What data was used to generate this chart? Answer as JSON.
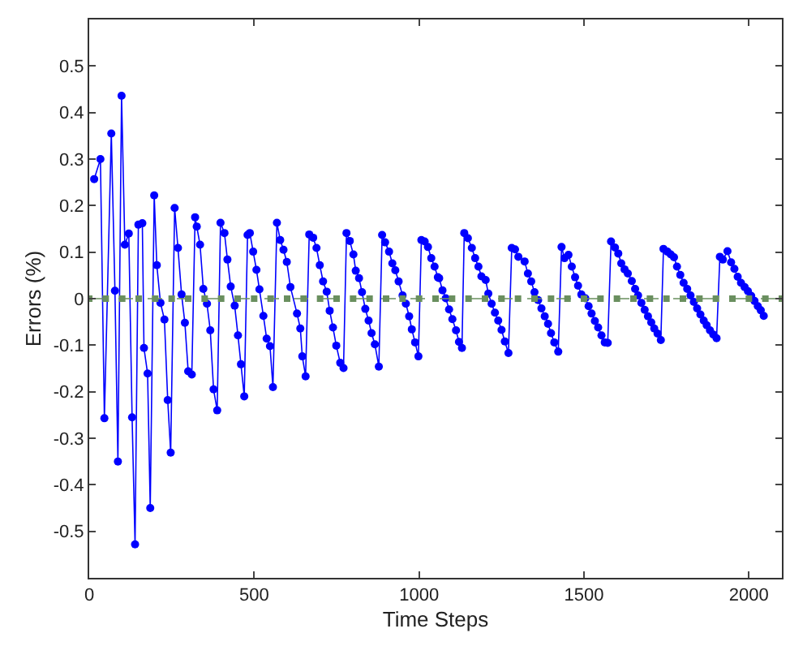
{
  "chart_data": {
    "type": "line",
    "xlabel": "Time Steps",
    "ylabel": "Errors (%)",
    "xlim": [
      0,
      2100
    ],
    "xticks": [
      0,
      500,
      1000,
      1500,
      2000
    ],
    "ylim": [
      -0.6,
      0.6
    ],
    "yticks": [
      -0.5,
      -0.4,
      -0.3,
      -0.2,
      -0.1,
      0,
      0.1,
      0.2,
      0.3,
      0.4,
      0.5
    ],
    "marker": "circle",
    "line_style": "solid",
    "series": [
      {
        "color": "#0000ff",
        "x": [
          15,
          34,
          46,
          67,
          78,
          87,
          98,
          108,
          120,
          130,
          139,
          149,
          161,
          166,
          177,
          185,
          197,
          205,
          216,
          228,
          238,
          247,
          259,
          269,
          280,
          290,
          300,
          311,
          321,
          326,
          336,
          346,
          357,
          367,
          377,
          388,
          398,
          410,
          419,
          429,
          441,
          451,
          460,
          470,
          480,
          487,
          497,
          507,
          516,
          528,
          538,
          548,
          557,
          569,
          579,
          589,
          599,
          610,
          630,
          640,
          646,
          656,
          667,
          679,
          689,
          699,
          709,
          720,
          729,
          739,
          749,
          761,
          771,
          780,
          790,
          801,
          808,
          818,
          827,
          837,
          847,
          856,
          866,
          878,
          888,
          897,
          909,
          919,
          928,
          938,
          950,
          960,
          970,
          978,
          988,
          998,
          1007,
          1017,
          1027,
          1037,
          1047,
          1057,
          1061,
          1071,
          1081,
          1091,
          1101,
          1112,
          1121,
          1130,
          1137,
          1148,
          1160,
          1170,
          1180,
          1189,
          1202,
          1210,
          1220,
          1230,
          1240,
          1250,
          1260,
          1271,
          1281,
          1291,
          1301,
          1320,
          1330,
          1340,
          1350,
          1361,
          1371,
          1381,
          1391,
          1400,
          1410,
          1422,
          1432,
          1441,
          1453,
          1463,
          1473,
          1482,
          1492,
          1504,
          1514,
          1523,
          1533,
          1543,
          1553,
          1563,
          1572,
          1582,
          1594,
          1604,
          1613,
          1623,
          1633,
          1645,
          1655,
          1664,
          1674,
          1684,
          1694,
          1704,
          1713,
          1723,
          1733,
          1741,
          1753,
          1763,
          1773,
          1782,
          1792,
          1802,
          1813,
          1823,
          1833,
          1843,
          1853,
          1863,
          1872,
          1882,
          1892,
          1902,
          1912,
          1921,
          1935,
          1946,
          1956,
          1966,
          1976,
          1987,
          1997,
          2007,
          2017,
          2027,
          2036,
          2045
        ],
        "values": [
          0.257,
          0.3,
          -0.257,
          0.355,
          0.017,
          -0.35,
          0.436,
          0.116,
          0.14,
          -0.255,
          -0.528,
          0.159,
          0.162,
          -0.106,
          -0.161,
          -0.45,
          0.222,
          0.072,
          -0.009,
          -0.045,
          -0.218,
          -0.331,
          0.195,
          0.109,
          0.009,
          -0.052,
          -0.156,
          -0.163,
          0.175,
          0.155,
          0.116,
          0.021,
          -0.011,
          -0.068,
          -0.195,
          -0.24,
          0.163,
          0.141,
          0.084,
          0.026,
          -0.015,
          -0.079,
          -0.141,
          -0.21,
          0.137,
          0.141,
          0.101,
          0.062,
          0.02,
          -0.037,
          -0.086,
          -0.102,
          -0.19,
          0.163,
          0.126,
          0.105,
          0.079,
          0.025,
          -0.032,
          -0.064,
          -0.124,
          -0.167,
          0.138,
          0.131,
          0.109,
          0.072,
          0.037,
          0.015,
          -0.026,
          -0.062,
          -0.101,
          -0.138,
          -0.149,
          0.141,
          0.124,
          0.095,
          0.06,
          0.044,
          0.014,
          -0.022,
          -0.047,
          -0.074,
          -0.098,
          -0.146,
          0.137,
          0.121,
          0.101,
          0.076,
          0.061,
          0.037,
          0.007,
          -0.011,
          -0.038,
          -0.066,
          -0.094,
          -0.124,
          0.126,
          0.123,
          0.111,
          0.087,
          0.069,
          0.046,
          0.044,
          0.018,
          0.001,
          -0.023,
          -0.044,
          -0.068,
          -0.093,
          -0.106,
          0.141,
          0.13,
          0.109,
          0.087,
          0.069,
          0.048,
          0.04,
          0.011,
          -0.011,
          -0.03,
          -0.047,
          -0.067,
          -0.092,
          -0.117,
          0.109,
          0.106,
          0.09,
          0.08,
          0.054,
          0.037,
          0.014,
          -0.003,
          -0.021,
          -0.038,
          -0.054,
          -0.074,
          -0.094,
          -0.114,
          0.111,
          0.087,
          0.094,
          0.069,
          0.046,
          0.028,
          0.009,
          0.001,
          -0.016,
          -0.032,
          -0.048,
          -0.062,
          -0.079,
          -0.094,
          -0.095,
          0.123,
          0.11,
          0.097,
          0.076,
          0.063,
          0.054,
          0.038,
          0.021,
          0.007,
          -0.009,
          -0.024,
          -0.038,
          -0.051,
          -0.064,
          -0.075,
          -0.089,
          0.107,
          0.101,
          0.095,
          0.089,
          0.069,
          0.051,
          0.034,
          0.021,
          0.007,
          -0.007,
          -0.021,
          -0.034,
          -0.047,
          -0.057,
          -0.068,
          -0.077,
          -0.085,
          0.09,
          0.084,
          0.102,
          0.078,
          0.064,
          0.047,
          0.034,
          0.025,
          0.016,
          0.006,
          -0.005,
          -0.016,
          -0.025,
          -0.037
        ]
      },
      {
        "color": "#6a8f5f",
        "line_style": "dashed",
        "marker": "square",
        "x": [
          0,
          50,
          100,
          150,
          200,
          250,
          300,
          350,
          400,
          450,
          500,
          550,
          600,
          650,
          700,
          750,
          800,
          850,
          900,
          950,
          1000,
          1050,
          1100,
          1150,
          1200,
          1250,
          1300,
          1350,
          1400,
          1450,
          1500,
          1550,
          1600,
          1650,
          1700,
          1750,
          1800,
          1850,
          1900,
          1950,
          2000,
          2050,
          2100
        ],
        "values": [
          0,
          0,
          0,
          0,
          0,
          0,
          0,
          0,
          0,
          0,
          0,
          0,
          0,
          0,
          0,
          0,
          0,
          0,
          0,
          0,
          0,
          0,
          0,
          0,
          0,
          0,
          0,
          0,
          0,
          0,
          0,
          0,
          0,
          0,
          0,
          0,
          0,
          0,
          0,
          0,
          0,
          0,
          0
        ]
      }
    ]
  }
}
